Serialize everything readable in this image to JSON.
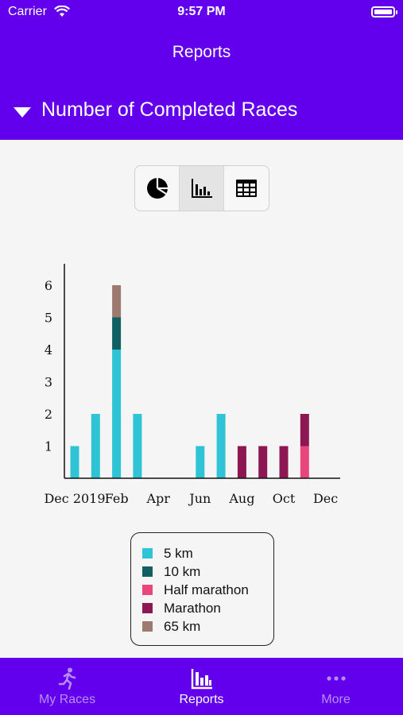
{
  "status_bar": {
    "carrier": "Carrier",
    "time": "9:57 PM"
  },
  "nav": {
    "title": "Reports"
  },
  "section": {
    "title": "Number of Completed Races"
  },
  "view_switcher": {
    "options": [
      {
        "icon": "pie-chart-icon"
      },
      {
        "icon": "bar-chart-icon",
        "selected": true
      },
      {
        "icon": "table-icon"
      }
    ]
  },
  "legend": {
    "items": [
      {
        "label": "5 km",
        "color": "#2ec4d6"
      },
      {
        "label": "10 km",
        "color": "#0f5f63"
      },
      {
        "label": "Half marathon",
        "color": "#e8467c"
      },
      {
        "label": "Marathon",
        "color": "#8c1752"
      },
      {
        "label": "65 km",
        "color": "#9c7a6e"
      }
    ]
  },
  "chart_data": {
    "type": "bar",
    "stacked": true,
    "x_ticks": [
      "Dec 2019",
      "Feb",
      "Apr",
      "Jun",
      "Aug",
      "Oct",
      "Dec"
    ],
    "y_ticks": [
      1,
      2,
      3,
      4,
      5,
      6
    ],
    "ylim": [
      0,
      6.6
    ],
    "months": [
      "Dec 2019",
      "Jan",
      "Feb",
      "Mar",
      "Apr",
      "May",
      "Jun",
      "Jul",
      "Aug",
      "Sep",
      "Oct",
      "Nov",
      "Dec"
    ],
    "series": [
      {
        "name": "5 km",
        "color": "#2ec4d6",
        "values": [
          1,
          2,
          4,
          2,
          0,
          0,
          1,
          2,
          0,
          0,
          0,
          0,
          0
        ]
      },
      {
        "name": "10 km",
        "color": "#0f5f63",
        "values": [
          0,
          0,
          1,
          0,
          0,
          0,
          0,
          0,
          0,
          0,
          0,
          0,
          0
        ]
      },
      {
        "name": "Half marathon",
        "color": "#e8467c",
        "values": [
          0,
          0,
          0,
          0,
          0,
          0,
          0,
          0,
          0,
          0,
          0,
          1,
          0
        ]
      },
      {
        "name": "Marathon",
        "color": "#8c1752",
        "values": [
          0,
          0,
          0,
          0,
          0,
          0,
          0,
          0,
          1,
          1,
          1,
          1,
          0
        ]
      },
      {
        "name": "65 km",
        "color": "#9c7a6e",
        "values": [
          0,
          0,
          1,
          0,
          0,
          0,
          0,
          0,
          0,
          0,
          0,
          0,
          0
        ]
      }
    ]
  },
  "tabs": [
    {
      "label": "My Races",
      "icon": "runner-icon"
    },
    {
      "label": "Reports",
      "icon": "bar-chart-icon",
      "active": true
    },
    {
      "label": "More",
      "icon": "more-dots-icon"
    }
  ]
}
